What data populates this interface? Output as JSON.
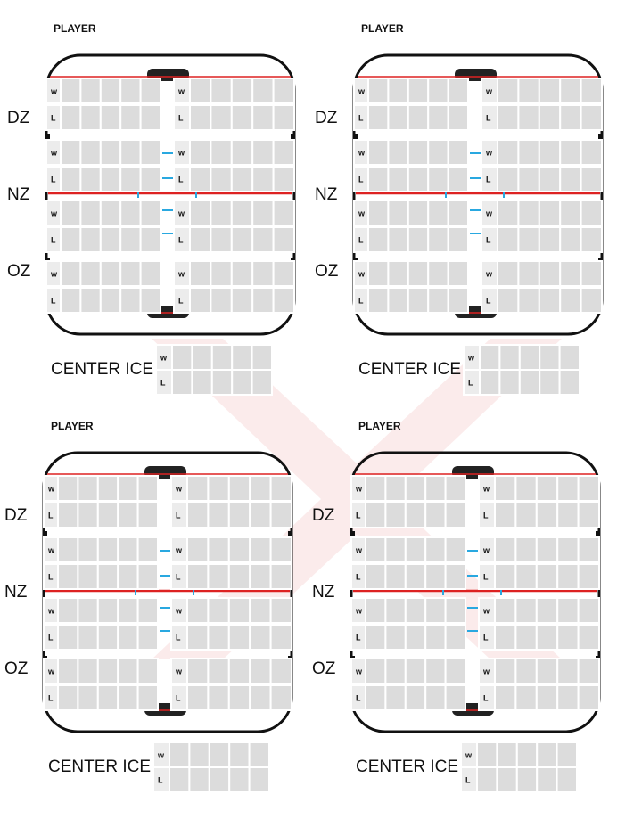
{
  "panels": [
    {
      "player": "PLAYER",
      "zones": [
        "DZ",
        "NZ",
        "OZ"
      ],
      "rows": [
        "w",
        "L"
      ],
      "center_ice": "CENTER ICE"
    },
    {
      "player": "PLAYER",
      "zones": [
        "DZ",
        "NZ",
        "OZ"
      ],
      "rows": [
        "w",
        "L"
      ],
      "center_ice": "CENTER ICE"
    },
    {
      "player": "PLAYER",
      "zones": [
        "DZ",
        "NZ",
        "OZ"
      ],
      "rows": [
        "w",
        "L"
      ],
      "center_ice": "CENTER ICE"
    },
    {
      "player": "PLAYER",
      "zones": [
        "DZ",
        "NZ",
        "OZ"
      ],
      "rows": [
        "w",
        "L"
      ],
      "center_ice": "CENTER ICE"
    }
  ]
}
